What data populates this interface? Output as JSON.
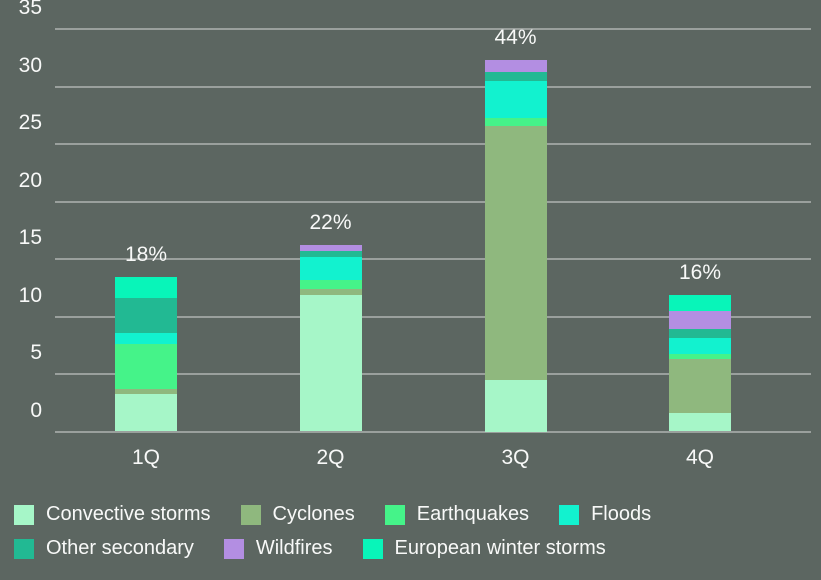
{
  "chart_data": {
    "type": "bar",
    "stacked": true,
    "categories": [
      "1Q",
      "2Q",
      "3Q",
      "4Q"
    ],
    "series": [
      {
        "name": "Convective storms",
        "color": "#A6F6C8",
        "values": [
          3.3,
          11.9,
          4.5,
          1.6
        ]
      },
      {
        "name": "Cyclones",
        "color": "#8FB87E",
        "values": [
          0.4,
          0.5,
          22.1,
          4.7
        ]
      },
      {
        "name": "Earthquakes",
        "color": "#45F389",
        "values": [
          3.9,
          0.8,
          0.7,
          0.4
        ]
      },
      {
        "name": "Floods",
        "color": "#12F2CF",
        "values": [
          1.0,
          2.0,
          3.2,
          1.4
        ]
      },
      {
        "name": "Other secondary",
        "color": "#22B993",
        "values": [
          3.0,
          0.5,
          0.8,
          0.8
        ]
      },
      {
        "name": "Wildfires",
        "color": "#B38EE2",
        "values": [
          0.0,
          0.5,
          1.0,
          1.6
        ]
      },
      {
        "name": "European winter storms",
        "color": "#08F5B9",
        "values": [
          1.8,
          0.0,
          0.0,
          1.4
        ]
      }
    ],
    "totals": [
      13.4,
      16.2,
      32.3,
      11.9
    ],
    "bar_labels": [
      "18%",
      "22%",
      "44%",
      "16%"
    ],
    "yticks": [
      0,
      5,
      10,
      15,
      20,
      25,
      30,
      35
    ],
    "ylim": [
      0,
      35
    ],
    "grid": true,
    "legend_position": "bottom",
    "legend_rows": [
      [
        "Convective storms",
        "Cyclones",
        "Earthquakes",
        "Floods"
      ],
      [
        "Other secondary",
        "Wildfires",
        "European winter storms"
      ]
    ]
  },
  "style": {
    "background": "#5C6661",
    "gridline": "rgba(255,255,255,0.38)",
    "text_color": "#F8F9F8"
  }
}
